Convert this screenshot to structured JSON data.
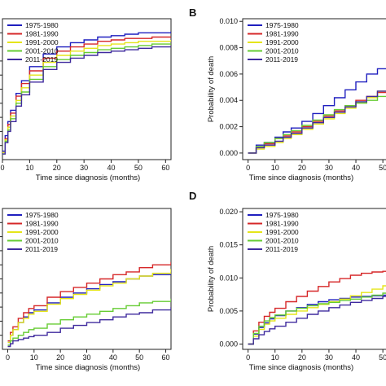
{
  "panel_letters": [
    "",
    "B",
    "",
    "D"
  ],
  "colors": {
    "1975-1980": "#1f1fbf",
    "1981-1990": "#d62728",
    "1991-2000": "#e5e51a",
    "2001-2010": "#66cc33",
    "2011-2019": "#3f2a9e"
  },
  "chart_data": [
    {
      "panel": "A",
      "type": "line",
      "step": true,
      "title": "",
      "xlabel": "Time since diagnosis (months)",
      "ylabel": "",
      "xlim": [
        0,
        62
      ],
      "ylim": [
        0,
        1
      ],
      "xticks": [
        0,
        10,
        20,
        30,
        40,
        50,
        60
      ],
      "yticks": [],
      "legend_position": "top-left",
      "x": [
        0,
        1,
        2,
        3,
        5,
        7,
        10,
        15,
        20,
        25,
        30,
        35,
        40,
        45,
        50,
        55,
        62
      ],
      "series": [
        {
          "name": "1975-1980",
          "values": [
            0.06,
            0.17,
            0.27,
            0.35,
            0.47,
            0.56,
            0.66,
            0.75,
            0.8,
            0.83,
            0.85,
            0.87,
            0.88,
            0.89,
            0.9,
            0.9,
            0.91
          ]
        },
        {
          "name": "1981-1990",
          "values": [
            0.05,
            0.15,
            0.25,
            0.33,
            0.45,
            0.54,
            0.63,
            0.72,
            0.77,
            0.8,
            0.82,
            0.84,
            0.85,
            0.86,
            0.86,
            0.87,
            0.87
          ]
        },
        {
          "name": "1991-2000",
          "values": [
            0.05,
            0.14,
            0.23,
            0.31,
            0.42,
            0.51,
            0.6,
            0.69,
            0.74,
            0.77,
            0.79,
            0.81,
            0.82,
            0.83,
            0.84,
            0.84,
            0.85
          ]
        },
        {
          "name": "2001-2010",
          "values": [
            0.04,
            0.13,
            0.21,
            0.29,
            0.4,
            0.48,
            0.57,
            0.66,
            0.71,
            0.74,
            0.76,
            0.78,
            0.79,
            0.8,
            0.81,
            0.82,
            0.82
          ]
        },
        {
          "name": "2011-2019",
          "values": [
            0.04,
            0.12,
            0.2,
            0.27,
            0.38,
            0.46,
            0.55,
            0.64,
            0.69,
            0.72,
            0.74,
            0.76,
            0.77,
            0.78,
            0.79,
            0.8,
            0.8
          ]
        }
      ]
    },
    {
      "panel": "B",
      "type": "line",
      "step": true,
      "title": "",
      "xlabel": "Time since diagnosis (months)",
      "ylabel": "Probability of death",
      "xlim": [
        -2,
        56
      ],
      "ylim": [
        -0.0005,
        0.0102
      ],
      "xticks": [
        0,
        10,
        20,
        30,
        40,
        50
      ],
      "yticks": [
        0.0,
        0.002,
        0.004,
        0.006,
        0.008,
        0.01
      ],
      "ytick_labels": [
        "0.000",
        "0.002",
        "0.004",
        "0.006",
        "0.008",
        "0.010"
      ],
      "legend_position": "top-left",
      "x": [
        0,
        3,
        6,
        10,
        13,
        16,
        20,
        24,
        28,
        32,
        36,
        40,
        44,
        48,
        52,
        56
      ],
      "series": [
        {
          "name": "1975-1980",
          "values": [
            0.0,
            0.0006,
            0.0008,
            0.0012,
            0.0016,
            0.0019,
            0.0024,
            0.003,
            0.0036,
            0.0042,
            0.0048,
            0.0054,
            0.006,
            0.0064,
            0.0069,
            0.0072
          ]
        },
        {
          "name": "1981-1990",
          "values": [
            0.0,
            0.0004,
            0.0007,
            0.0011,
            0.0013,
            0.0016,
            0.002,
            0.0024,
            0.0028,
            0.0032,
            0.0036,
            0.004,
            0.0043,
            0.0046,
            0.005,
            0.0052
          ]
        },
        {
          "name": "1991-2000",
          "values": [
            0.0,
            0.0003,
            0.0005,
            0.0008,
            0.0011,
            0.0014,
            0.0018,
            0.0022,
            0.0026,
            0.003,
            0.0034,
            0.0038,
            0.0042,
            0.0047,
            0.0053,
            0.0058
          ]
        },
        {
          "name": "2001-2010",
          "values": [
            0.0,
            0.0005,
            0.0008,
            0.0011,
            0.0014,
            0.0017,
            0.0021,
            0.0025,
            0.0029,
            0.0033,
            0.0036,
            0.0038,
            0.004,
            0.0043,
            0.0046,
            0.0048
          ]
        },
        {
          "name": "2011-2019",
          "values": [
            0.0,
            0.0004,
            0.0006,
            0.0009,
            0.0012,
            0.0015,
            0.0019,
            0.0023,
            0.0027,
            0.0031,
            0.0035,
            0.0039,
            0.0043,
            0.0047,
            0.0051,
            0.0055
          ]
        }
      ]
    },
    {
      "panel": "C",
      "type": "line",
      "step": true,
      "title": "",
      "xlabel": "Time since diagnosis (months)",
      "ylabel": "",
      "xlim": [
        -2,
        62
      ],
      "ylim": [
        0,
        1
      ],
      "xticks": [
        0,
        10,
        20,
        30,
        40,
        50,
        60
      ],
      "yticks": [],
      "legend_position": "top-left",
      "x": [
        0,
        1,
        2,
        4,
        6,
        8,
        10,
        15,
        20,
        25,
        30,
        35,
        40,
        45,
        50,
        55,
        62
      ],
      "series": [
        {
          "name": "1975-1980",
          "values": [
            0.05,
            0.1,
            0.14,
            0.19,
            0.23,
            0.26,
            0.28,
            0.33,
            0.37,
            0.4,
            0.43,
            0.46,
            0.48,
            0.5,
            0.52,
            0.53,
            0.55
          ]
        },
        {
          "name": "1981-1990",
          "values": [
            0.06,
            0.12,
            0.16,
            0.22,
            0.26,
            0.29,
            0.31,
            0.37,
            0.41,
            0.44,
            0.47,
            0.5,
            0.53,
            0.55,
            0.58,
            0.6,
            0.62
          ]
        },
        {
          "name": "1991-2000",
          "values": [
            0.05,
            0.1,
            0.14,
            0.19,
            0.22,
            0.25,
            0.27,
            0.32,
            0.36,
            0.39,
            0.42,
            0.45,
            0.47,
            0.5,
            0.52,
            0.54,
            0.57
          ]
        },
        {
          "name": "2001-2010",
          "values": [
            0.03,
            0.06,
            0.08,
            0.1,
            0.12,
            0.14,
            0.15,
            0.18,
            0.21,
            0.23,
            0.25,
            0.27,
            0.29,
            0.31,
            0.33,
            0.34,
            0.36
          ]
        },
        {
          "name": "2011-2019",
          "values": [
            0.02,
            0.04,
            0.06,
            0.07,
            0.08,
            0.09,
            0.1,
            0.12,
            0.15,
            0.17,
            0.19,
            0.21,
            0.23,
            0.25,
            0.26,
            0.28,
            0.3
          ]
        }
      ]
    },
    {
      "panel": "D",
      "type": "line",
      "step": true,
      "title": "",
      "xlabel": "Time since diagnosis (months)",
      "ylabel": "Probability of death",
      "xlim": [
        -2,
        56
      ],
      "ylim": [
        -0.0008,
        0.0205
      ],
      "xticks": [
        0,
        10,
        20,
        30,
        40,
        50
      ],
      "yticks": [
        0.0,
        0.005,
        0.01,
        0.015,
        0.02
      ],
      "ytick_labels": [
        "0.000",
        "0.005",
        "0.010",
        "0.015",
        "0.020"
      ],
      "legend_position": "top-left",
      "x": [
        0,
        2,
        4,
        6,
        8,
        10,
        14,
        18,
        22,
        26,
        30,
        34,
        38,
        42,
        46,
        50,
        56
      ],
      "series": [
        {
          "name": "1975-1980",
          "values": [
            0.0,
            0.0015,
            0.0025,
            0.0032,
            0.0038,
            0.0043,
            0.005,
            0.0055,
            0.006,
            0.0064,
            0.0067,
            0.0069,
            0.0071,
            0.0072,
            0.0073,
            0.0074,
            0.0075
          ]
        },
        {
          "name": "1981-1990",
          "values": [
            0.0,
            0.002,
            0.0033,
            0.0042,
            0.0048,
            0.0054,
            0.0064,
            0.0072,
            0.008,
            0.0087,
            0.0094,
            0.0099,
            0.0104,
            0.0107,
            0.0109,
            0.011,
            0.0111
          ]
        },
        {
          "name": "1991-2000",
          "values": [
            0.0,
            0.0012,
            0.0022,
            0.003,
            0.0035,
            0.0039,
            0.0045,
            0.005,
            0.0055,
            0.006,
            0.0064,
            0.0068,
            0.0073,
            0.0078,
            0.0083,
            0.0088,
            0.0093
          ]
        },
        {
          "name": "2001-2010",
          "values": [
            0.0,
            0.0016,
            0.0027,
            0.0035,
            0.004,
            0.0044,
            0.005,
            0.0054,
            0.0058,
            0.0061,
            0.0063,
            0.0066,
            0.0068,
            0.0071,
            0.0074,
            0.0077,
            0.008
          ]
        },
        {
          "name": "2011-2019",
          "values": [
            0.0,
            0.0008,
            0.0014,
            0.0019,
            0.0023,
            0.0027,
            0.0033,
            0.0039,
            0.0045,
            0.005,
            0.0055,
            0.0059,
            0.0063,
            0.0066,
            0.0069,
            0.0072,
            0.0074
          ]
        }
      ]
    }
  ]
}
